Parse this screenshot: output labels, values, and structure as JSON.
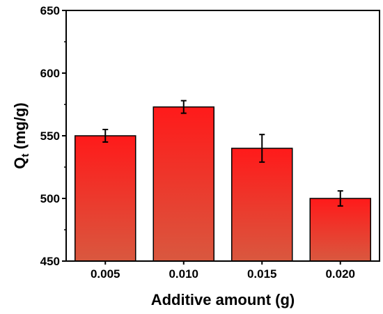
{
  "chart_data": {
    "type": "bar",
    "categories": [
      "0.005",
      "0.010",
      "0.015",
      "0.020"
    ],
    "values": [
      550,
      573,
      540,
      500
    ],
    "errors": [
      5,
      5,
      11,
      6
    ],
    "xlabel": "Additive amount (g)",
    "ylabel_main": "Q",
    "ylabel_sub": "t",
    "ylabel_rest": " (mg/g)",
    "ylim": [
      450,
      650
    ],
    "yticks": [
      450,
      500,
      550,
      600,
      650
    ],
    "ytick_labels": [
      "450",
      "500",
      "550",
      "600",
      "650"
    ],
    "grid": false,
    "legend": "none",
    "bar_colors": {
      "top": "#ff1a1a",
      "bottom": "#d9583f"
    }
  }
}
